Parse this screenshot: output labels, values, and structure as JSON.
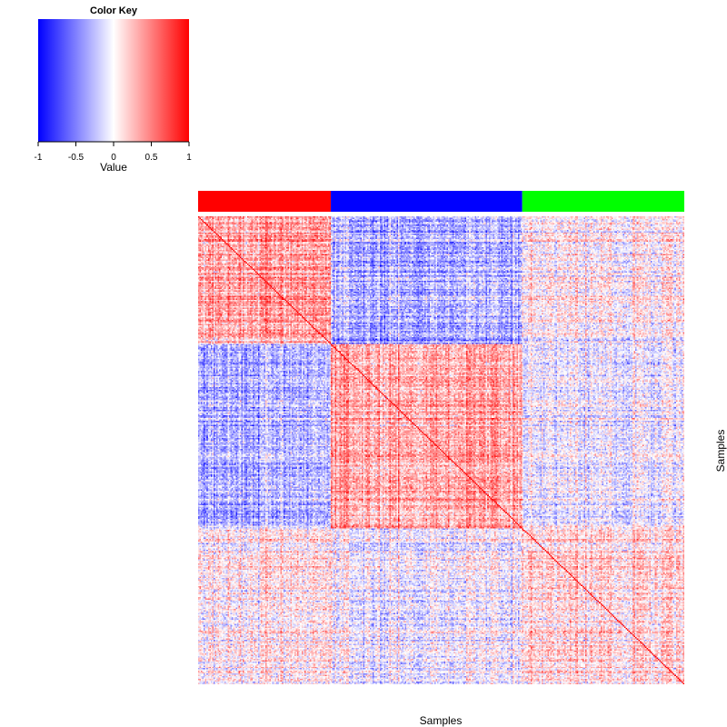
{
  "chart_data": {
    "type": "heatmap",
    "title": "",
    "xlabel": "Samples",
    "ylabel": "Samples",
    "color_key": {
      "title": "Color Key",
      "xlabel": "Value",
      "range": [
        -1,
        1
      ],
      "ticks": [
        "-1",
        "-0.5",
        "0",
        "0.5",
        "1"
      ],
      "tick_values": [
        -1,
        -0.5,
        0,
        0.5,
        1
      ],
      "colors": {
        "low": "#0000ff",
        "mid": "#ffffff",
        "high": "#ff0000"
      }
    },
    "groups": [
      {
        "color": "#ff0000",
        "size": 95
      },
      {
        "color": "#0000ff",
        "size": 137
      },
      {
        "color": "#00ff00",
        "size": 116
      }
    ],
    "block_mean_correlation": [
      [
        0.35,
        -0.3,
        0.05
      ],
      [
        -0.3,
        0.35,
        -0.05
      ],
      [
        0.05,
        -0.05,
        0.15
      ]
    ],
    "diagonal_value": 1,
    "grid": false
  }
}
